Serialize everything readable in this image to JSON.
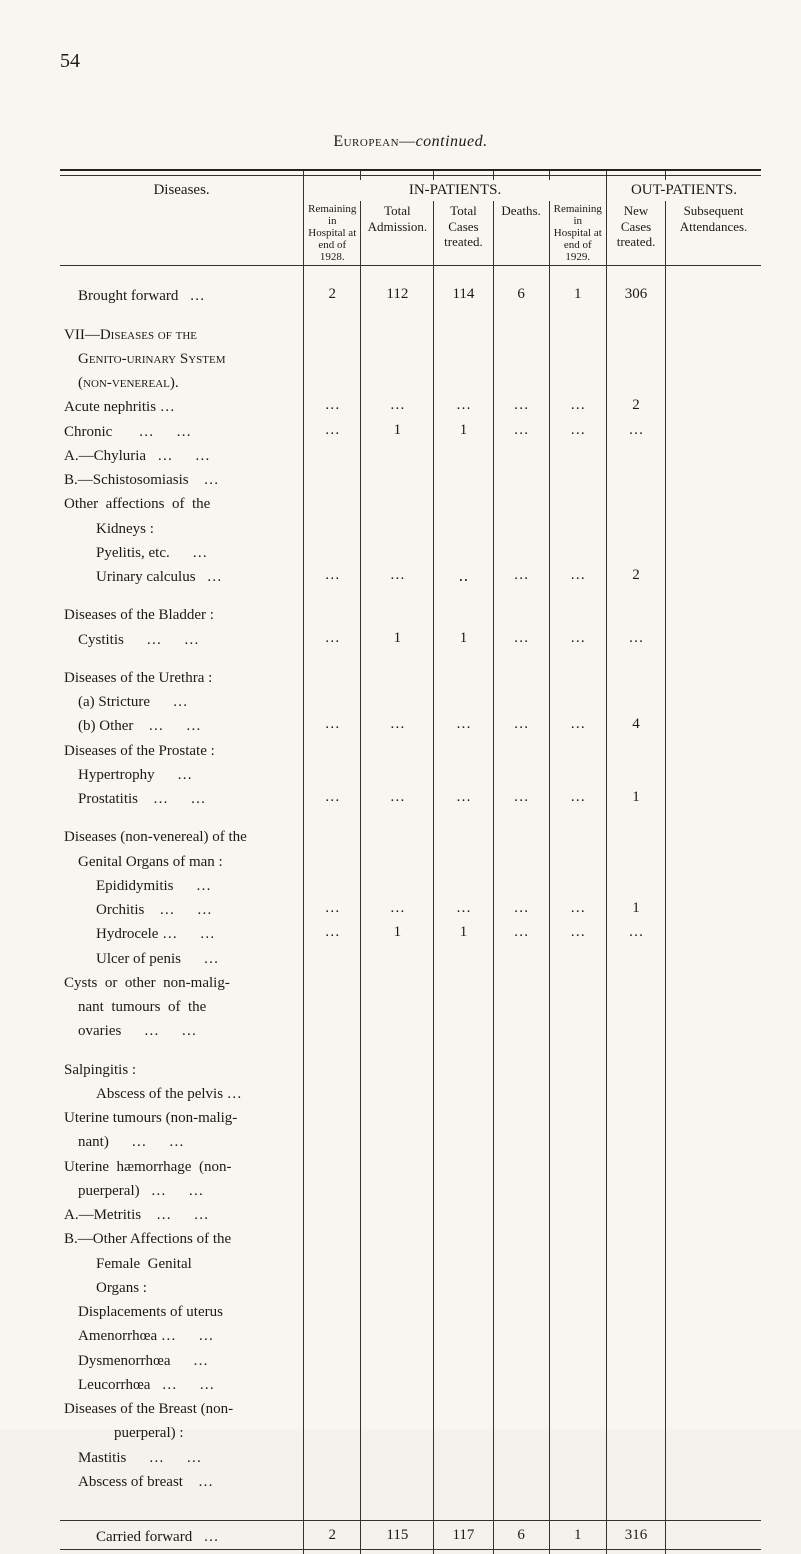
{
  "page_number": "54",
  "section_title_sc": "European",
  "section_title_dash": "—",
  "section_title_it": "continued.",
  "headers": {
    "diseases": "Diseases.",
    "in_patients": "IN-PATIENTS.",
    "out_patients": "OUT-PATIENTS.",
    "remaining_1928": "Remaining in Hospital at end of 1928.",
    "total_admission": "Total Admission.",
    "total_cases_treated": "Total Cases treated.",
    "deaths": "Deaths.",
    "remaining_1929": "Remaining in Hospital at end of 1929.",
    "new_cases_treated": "New Cases treated.",
    "subsequent_attendances": "Subsequent Attendances."
  },
  "rows": {
    "brought_forward": {
      "label": "Brought forward",
      "c1": "2",
      "c2": "112",
      "c3": "114",
      "c4": "6",
      "c5": "1",
      "c6": "306",
      "c7": ""
    },
    "vii_head": "VII—Diseases of the Genito-urinary System (non-venereal).",
    "acute_nephritis": {
      "label": "Acute nephritis  …",
      "c1": "…",
      "c2": "…",
      "c3": "…",
      "c4": "…",
      "c5": "…",
      "c6": "2",
      "c7": ""
    },
    "chronic": {
      "label": "Chronic",
      "c1": "…",
      "c2": "1",
      "c3": "1",
      "c4": "…",
      "c5": "…",
      "c6": "…",
      "c7": ""
    },
    "chyluria": {
      "label": "A.—Chyluria"
    },
    "schisto": {
      "label": "B.—Schistosomiasis"
    },
    "other_aff": {
      "label": "Other  affections  of  the Kidneys :"
    },
    "pyelitis": {
      "label": "Pyelitis, etc."
    },
    "urinary_calc": {
      "label": "Urinary calculus",
      "c1": "…",
      "c2": "…",
      "c3": "‥",
      "c4": "…",
      "c5": "…",
      "c6": "2",
      "c7": ""
    },
    "bladder_head": "Diseases of the Bladder :",
    "cystitis": {
      "label": "Cystitis",
      "c1": "…",
      "c2": "1",
      "c3": "1",
      "c4": "…",
      "c5": "…",
      "c6": "…",
      "c7": ""
    },
    "urethra_head": "Diseases of the Urethra :",
    "stricture": {
      "label": "(a) Stricture"
    },
    "other_ur": {
      "label": "(b) Other",
      "c1": "…",
      "c2": "…",
      "c3": "…",
      "c4": "…",
      "c5": "…",
      "c6": "4",
      "c7": ""
    },
    "prostate_head": "Diseases of the Prostate :",
    "hypertrophy": {
      "label": "Hypertrophy"
    },
    "prostatitis": {
      "label": "Prostatitis",
      "c1": "…",
      "c2": "…",
      "c3": "…",
      "c4": "…",
      "c5": "…",
      "c6": "1",
      "c7": ""
    },
    "nonven_head": "Diseases (non-venereal) of the Genital Organs of man :",
    "epididymitis": {
      "label": "Epididymitis"
    },
    "orchitis": {
      "label": "Orchitis",
      "c1": "…",
      "c2": "…",
      "c3": "…",
      "c4": "…",
      "c5": "…",
      "c6": "1",
      "c7": ""
    },
    "hydrocele": {
      "label": "Hydrocele  …",
      "c1": "…",
      "c2": "1",
      "c3": "1",
      "c4": "…",
      "c5": "…",
      "c6": "…",
      "c7": ""
    },
    "ulcer_penis": {
      "label": "Ulcer of penis"
    },
    "cysts": {
      "label": "Cysts  or  other  non-malignant  tumours  of  the ovaries"
    },
    "salpingitis": "Salpingitis :",
    "abscess_pelvis": {
      "label": "Abscess of the pelvis …"
    },
    "uterine_tumours": {
      "label": "Uterine tumours (non-malignant)"
    },
    "uterine_haem": {
      "label": "Uterine  hæmorrhage  (non-puerperal)"
    },
    "metritis": {
      "label": "A.—Metritis"
    },
    "other_aff_fem": {
      "label": "B.—Other Affections of the Female  Genital Organs :"
    },
    "displacements": {
      "label": "Displacements  of  uterus"
    },
    "amenorrhoea": {
      "label": "Amenorrhœa  …"
    },
    "dysmenorrhoea": {
      "label": "Dysmenorrhœa"
    },
    "leucorrhoea": {
      "label": "Leucorrhœa"
    },
    "breast_head": "Diseases of the Breast (non-puerperal) :",
    "mastitis": {
      "label": "Mastitis"
    },
    "abscess_breast": {
      "label": "Abscess of breast"
    },
    "carried_forward": {
      "label": "Carried forward",
      "c1": "2",
      "c2": "115",
      "c3": "117",
      "c4": "6",
      "c5": "1",
      "c6": "316",
      "c7": ""
    }
  }
}
